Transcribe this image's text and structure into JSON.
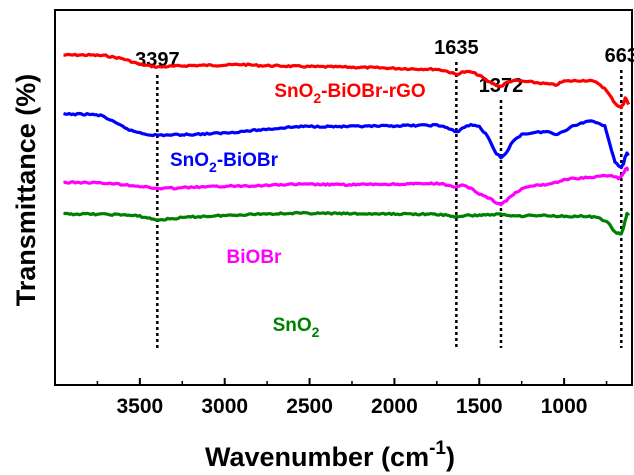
{
  "chart_data": {
    "type": "line",
    "xlabel": "Wavenumber (cm",
    "xlabel_sup": "-1",
    "xlabel_close": ")",
    "ylabel": "Transmittance (%)",
    "xlim": [
      4000,
      600
    ],
    "x_reversed": true,
    "y_ticks_shown": false,
    "x_ticks": [
      3500,
      3000,
      2500,
      2000,
      1500,
      1000
    ],
    "x_tick_labels": [
      "3500",
      "3000",
      "2500",
      "2000",
      "1500",
      "1000"
    ],
    "peak_markers": [
      {
        "x": 3397,
        "label": "3397"
      },
      {
        "x": 1635,
        "label": "1635"
      },
      {
        "x": 1372,
        "label": "1372"
      },
      {
        "x": 663,
        "label": "663"
      }
    ],
    "series": [
      {
        "name": "SnO2-BiOBr-rGO",
        "label_main": "SnO",
        "label_sub": "2",
        "label_rest": "-BiOBr-rGO",
        "color": "#ff0000",
        "points": [
          [
            3950,
            0.88
          ],
          [
            3800,
            0.88
          ],
          [
            3700,
            0.878
          ],
          [
            3600,
            0.87
          ],
          [
            3500,
            0.855
          ],
          [
            3397,
            0.848
          ],
          [
            3300,
            0.85
          ],
          [
            3200,
            0.852
          ],
          [
            3000,
            0.853
          ],
          [
            2900,
            0.855
          ],
          [
            2800,
            0.852
          ],
          [
            2600,
            0.85
          ],
          [
            2500,
            0.849
          ],
          [
            2300,
            0.848
          ],
          [
            2100,
            0.846
          ],
          [
            1900,
            0.843
          ],
          [
            1750,
            0.842
          ],
          [
            1700,
            0.838
          ],
          [
            1635,
            0.828
          ],
          [
            1600,
            0.834
          ],
          [
            1550,
            0.835
          ],
          [
            1500,
            0.826
          ],
          [
            1450,
            0.81
          ],
          [
            1400,
            0.8
          ],
          [
            1372,
            0.796
          ],
          [
            1340,
            0.806
          ],
          [
            1300,
            0.812
          ],
          [
            1200,
            0.808
          ],
          [
            1100,
            0.803
          ],
          [
            1050,
            0.8
          ],
          [
            1000,
            0.81
          ],
          [
            900,
            0.812
          ],
          [
            850,
            0.812
          ],
          [
            800,
            0.805
          ],
          [
            760,
            0.79
          ],
          [
            720,
            0.765
          ],
          [
            700,
            0.752
          ],
          [
            680,
            0.744
          ],
          [
            663,
            0.74
          ],
          [
            650,
            0.75
          ],
          [
            640,
            0.766
          ],
          [
            630,
            0.758
          ],
          [
            620,
            0.748
          ]
        ]
      },
      {
        "name": "SnO2-BiOBr",
        "label_main": "SnO",
        "label_sub": "2",
        "label_rest": "-BiOBr",
        "color": "#0000ff",
        "points": [
          [
            3950,
            0.722
          ],
          [
            3800,
            0.722
          ],
          [
            3720,
            0.718
          ],
          [
            3650,
            0.7
          ],
          [
            3550,
            0.678
          ],
          [
            3450,
            0.668
          ],
          [
            3397,
            0.666
          ],
          [
            3300,
            0.667
          ],
          [
            3200,
            0.668
          ],
          [
            3000,
            0.672
          ],
          [
            2800,
            0.68
          ],
          [
            2600,
            0.688
          ],
          [
            2500,
            0.69
          ],
          [
            2300,
            0.689
          ],
          [
            2100,
            0.69
          ],
          [
            1900,
            0.692
          ],
          [
            1750,
            0.693
          ],
          [
            1700,
            0.688
          ],
          [
            1635,
            0.674
          ],
          [
            1600,
            0.685
          ],
          [
            1550,
            0.694
          ],
          [
            1500,
            0.69
          ],
          [
            1450,
            0.662
          ],
          [
            1400,
            0.618
          ],
          [
            1372,
            0.605
          ],
          [
            1340,
            0.618
          ],
          [
            1300,
            0.652
          ],
          [
            1250,
            0.668
          ],
          [
            1200,
            0.672
          ],
          [
            1100,
            0.676
          ],
          [
            1050,
            0.668
          ],
          [
            1000,
            0.678
          ],
          [
            950,
            0.69
          ],
          [
            900,
            0.698
          ],
          [
            850,
            0.705
          ],
          [
            800,
            0.7
          ],
          [
            760,
            0.69
          ],
          [
            740,
            0.66
          ],
          [
            720,
            0.625
          ],
          [
            700,
            0.596
          ],
          [
            680,
            0.583
          ],
          [
            663,
            0.58
          ],
          [
            650,
            0.588
          ],
          [
            640,
            0.61
          ],
          [
            630,
            0.62
          ],
          [
            620,
            0.612
          ]
        ]
      },
      {
        "name": "BiOBr",
        "label_main": "BiOBr",
        "label_sub": "",
        "label_rest": "",
        "color": "#ff00ff",
        "points": [
          [
            3950,
            0.54
          ],
          [
            3800,
            0.54
          ],
          [
            3700,
            0.538
          ],
          [
            3600,
            0.535
          ],
          [
            3500,
            0.53
          ],
          [
            3397,
            0.524
          ],
          [
            3300,
            0.525
          ],
          [
            3200,
            0.527
          ],
          [
            3000,
            0.53
          ],
          [
            2800,
            0.532
          ],
          [
            2600,
            0.535
          ],
          [
            2500,
            0.535
          ],
          [
            2300,
            0.534
          ],
          [
            2100,
            0.535
          ],
          [
            1900,
            0.536
          ],
          [
            1750,
            0.537
          ],
          [
            1700,
            0.535
          ],
          [
            1635,
            0.527
          ],
          [
            1600,
            0.532
          ],
          [
            1550,
            0.525
          ],
          [
            1500,
            0.51
          ],
          [
            1450,
            0.5
          ],
          [
            1400,
            0.487
          ],
          [
            1372,
            0.482
          ],
          [
            1340,
            0.492
          ],
          [
            1300,
            0.508
          ],
          [
            1250,
            0.522
          ],
          [
            1200,
            0.53
          ],
          [
            1100,
            0.535
          ],
          [
            1050,
            0.54
          ],
          [
            1000,
            0.548
          ],
          [
            950,
            0.55
          ],
          [
            900,
            0.552
          ],
          [
            850,
            0.553
          ],
          [
            800,
            0.555
          ],
          [
            760,
            0.56
          ],
          [
            720,
            0.558
          ],
          [
            700,
            0.554
          ],
          [
            680,
            0.552
          ],
          [
            663,
            0.556
          ],
          [
            650,
            0.564
          ],
          [
            640,
            0.574
          ],
          [
            630,
            0.578
          ],
          [
            620,
            0.575
          ]
        ]
      },
      {
        "name": "SnO2",
        "label_main": "SnO",
        "label_sub": "2",
        "label_rest": "",
        "color": "#008000",
        "points": [
          [
            3950,
            0.456
          ],
          [
            3800,
            0.456
          ],
          [
            3700,
            0.455
          ],
          [
            3600,
            0.454
          ],
          [
            3500,
            0.45
          ],
          [
            3397,
            0.44
          ],
          [
            3300,
            0.444
          ],
          [
            3200,
            0.448
          ],
          [
            3000,
            0.452
          ],
          [
            2800,
            0.456
          ],
          [
            2600,
            0.458
          ],
          [
            2500,
            0.458
          ],
          [
            2300,
            0.457
          ],
          [
            2100,
            0.456
          ],
          [
            1900,
            0.456
          ],
          [
            1750,
            0.455
          ],
          [
            1700,
            0.453
          ],
          [
            1635,
            0.448
          ],
          [
            1600,
            0.451
          ],
          [
            1550,
            0.452
          ],
          [
            1500,
            0.453
          ],
          [
            1450,
            0.454
          ],
          [
            1400,
            0.455
          ],
          [
            1372,
            0.455
          ],
          [
            1340,
            0.453
          ],
          [
            1300,
            0.452
          ],
          [
            1250,
            0.451
          ],
          [
            1200,
            0.452
          ],
          [
            1100,
            0.452
          ],
          [
            1050,
            0.451
          ],
          [
            1000,
            0.45
          ],
          [
            950,
            0.45
          ],
          [
            900,
            0.45
          ],
          [
            850,
            0.449
          ],
          [
            800,
            0.446
          ],
          [
            760,
            0.438
          ],
          [
            740,
            0.432
          ],
          [
            720,
            0.42
          ],
          [
            700,
            0.408
          ],
          [
            680,
            0.404
          ],
          [
            663,
            0.402
          ],
          [
            650,
            0.418
          ],
          [
            640,
            0.44
          ],
          [
            630,
            0.456
          ],
          [
            620,
            0.452
          ]
        ]
      }
    ]
  }
}
